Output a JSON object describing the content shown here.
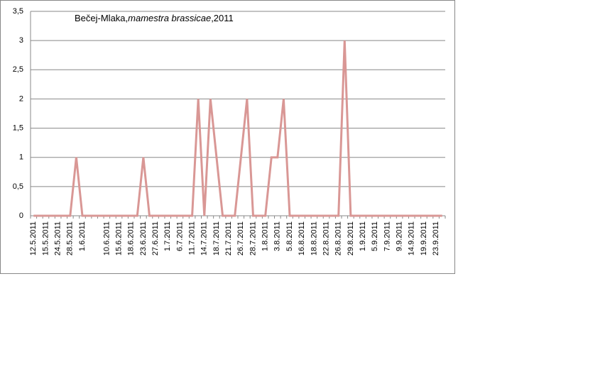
{
  "chart_data": {
    "type": "line",
    "title_parts": [
      "Bečej-Mlaka,",
      "mamestra brassicae",
      ",2011"
    ],
    "categories": [
      "12.5.2011",
      null,
      "15.5.2011",
      null,
      "24.5.2011",
      null,
      "28.5.2011",
      null,
      "1.6.2011",
      null,
      null,
      null,
      "10.6.2011",
      null,
      "15.6.2011",
      null,
      "18.6.2011",
      null,
      "23.6.2011",
      null,
      "27.6.2011",
      null,
      "1.7.2011",
      null,
      "6.7.2011",
      null,
      "11.7.2011",
      null,
      "14.7.2011",
      null,
      "18.7.2011",
      null,
      "21.7.2011",
      null,
      "26.7.2011",
      null,
      "28.7.2011",
      null,
      "1.8.2011",
      null,
      "3.8.2011",
      null,
      "5.8.2011",
      null,
      "16.8.2011",
      null,
      "18.8.2011",
      null,
      "22.8.2011",
      null,
      "26.8.2011",
      null,
      "29.8.2011",
      null,
      "1.9.2011",
      null,
      "5.9.2011",
      null,
      "7.9.2011",
      null,
      "9.9.2011",
      null,
      "14.9.2011",
      null,
      "19.9.2011",
      null,
      "23.9.2011",
      null
    ],
    "values": [
      0,
      0,
      0,
      0,
      0,
      0,
      0,
      1,
      0,
      0,
      0,
      0,
      0,
      0,
      0,
      0,
      0,
      0,
      1,
      0,
      0,
      0,
      0,
      0,
      0,
      0,
      0,
      2,
      0,
      2,
      1,
      0,
      0,
      0,
      1,
      2,
      0,
      0,
      0,
      1,
      1,
      2,
      0,
      0,
      0,
      0,
      0,
      0,
      0,
      0,
      0,
      3,
      0,
      0,
      0,
      0,
      0,
      0,
      0,
      0,
      0,
      0,
      0,
      0,
      0,
      0,
      0,
      0
    ],
    "color": "#d99795",
    "ylim": [
      0,
      3.5
    ],
    "yticks": [
      0,
      {
        "value": 0.5,
        "label": "0,5"
      },
      1,
      {
        "value": 1.5,
        "label": "1,5"
      },
      2,
      {
        "value": 2.5,
        "label": "2,5"
      },
      3,
      {
        "value": 3.5,
        "label": "3,5"
      }
    ],
    "grid": true
  }
}
